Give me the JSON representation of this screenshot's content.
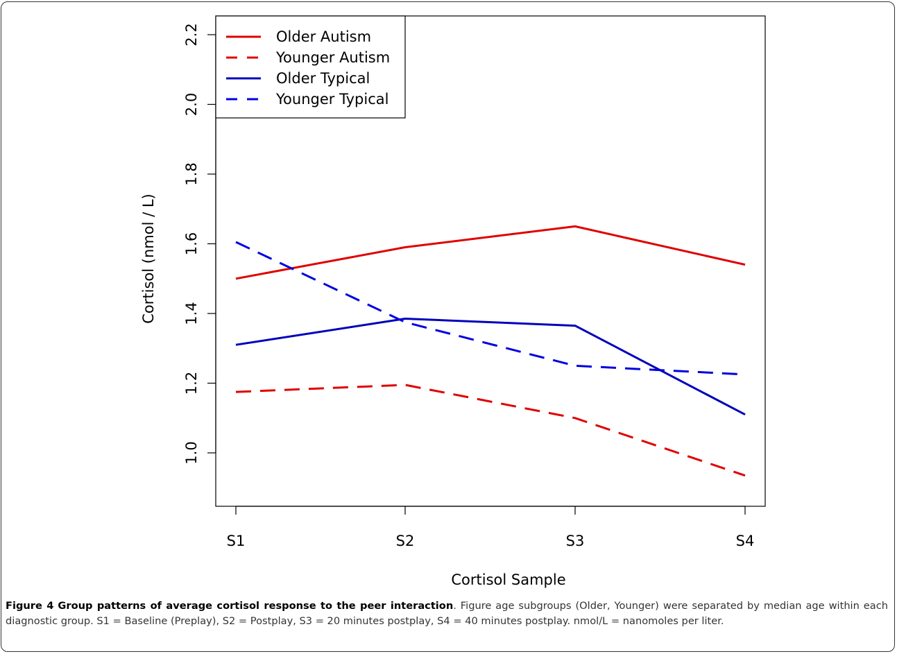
{
  "chart_data": {
    "type": "line",
    "xlabel": "Cortisol Sample",
    "ylabel": "Cortisol (nmol / L)",
    "categories": [
      "S1",
      "S2",
      "S3",
      "S4"
    ],
    "ylim": [
      0.85,
      2.25
    ],
    "yticks": [
      "1.0",
      "1.2",
      "1.4",
      "1.6",
      "1.8",
      "2.0",
      "2.2"
    ],
    "legend_position": "top-left",
    "grid": false,
    "series": [
      {
        "name": "Older Autism",
        "color": "#e00000",
        "dash": "solid",
        "values": [
          1.5,
          1.59,
          1.65,
          1.54
        ]
      },
      {
        "name": "Younger Autism",
        "color": "#e00000",
        "dash": "dashed",
        "values": [
          1.175,
          1.195,
          1.1,
          0.935
        ]
      },
      {
        "name": "Older Typical",
        "color": "#0000bb",
        "dash": "solid",
        "values": [
          1.31,
          1.385,
          1.365,
          1.11
        ]
      },
      {
        "name": "Younger Typical",
        "color": "#0000e0",
        "dash": "dashed",
        "values": [
          1.605,
          1.375,
          1.25,
          1.225
        ]
      }
    ]
  },
  "caption": {
    "figure_label": "Figure 4",
    "title": "Group patterns of average cortisol response to the peer interaction",
    "body": ". Figure age subgroups (Older, Younger) were separated by median age within each diagnostic group. S1 = Baseline (Preplay), S2 = Postplay, S3 = 20 minutes postplay, S4 = 40 minutes postplay. nmol/L = nanomoles per liter."
  }
}
